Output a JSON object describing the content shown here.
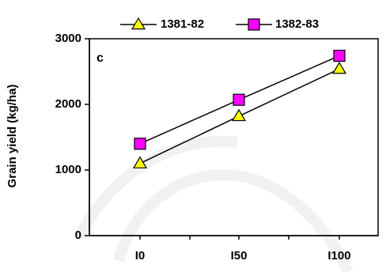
{
  "chart_data": {
    "type": "line",
    "title": "",
    "panel_label": "c",
    "xlabel": "",
    "ylabel": "Grain yield (kg/ha)",
    "categories": [
      "I0",
      "I50",
      "I100"
    ],
    "ylim": [
      0,
      3000
    ],
    "y_ticks": [
      "0",
      "1000",
      "2000",
      "3000"
    ],
    "grid": false,
    "legend_position": "top",
    "series": [
      {
        "name": "1381-82",
        "marker": "triangle",
        "color": "#ffff00",
        "values": [
          1100,
          1820,
          2540
        ]
      },
      {
        "name": "1382-83",
        "marker": "square",
        "color": "#ff00ff",
        "values": [
          1400,
          2070,
          2740
        ]
      }
    ]
  }
}
